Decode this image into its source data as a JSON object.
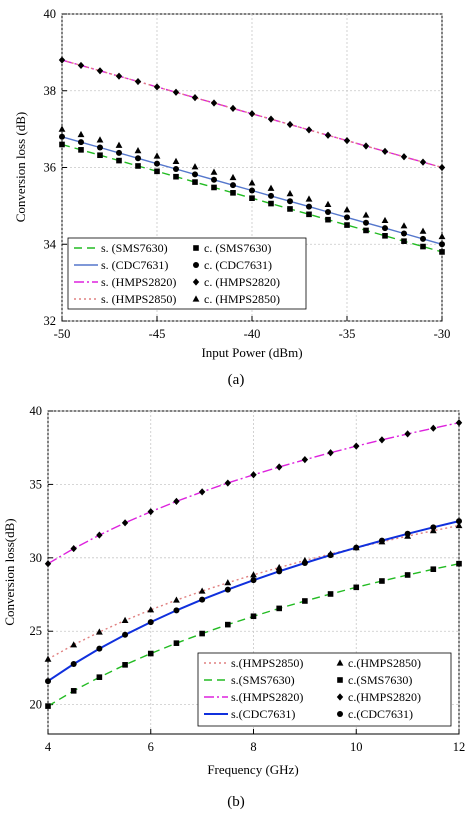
{
  "chart_data": [
    {
      "type": "line",
      "panel_label": "(a)",
      "xlabel": "Input Power (dBm)",
      "ylabel": "Conversion loss (dB)",
      "xlim": [
        -50,
        -30
      ],
      "ylim": [
        32,
        40
      ],
      "xticks": [
        -50,
        -45,
        -40,
        -35,
        -30
      ],
      "yticks": [
        32,
        34,
        36,
        38,
        40
      ],
      "grid": true,
      "legend_position": "bottom-left",
      "x": [
        -50,
        -49,
        -48,
        -47,
        -46,
        -45,
        -44,
        -43,
        -42,
        -41,
        -40,
        -39,
        -38,
        -37,
        -36,
        -35,
        -34,
        -33,
        -32,
        -31,
        -30
      ],
      "series": [
        {
          "name": "s. (SMS7630)",
          "kind": "simulated",
          "color": "#22bb22",
          "dash": "8,5",
          "y_start": 36.6,
          "y_end": 33.8
        },
        {
          "name": "s. (CDC7631)",
          "kind": "simulated",
          "color": "#5577cc",
          "dash": "",
          "y_start": 36.8,
          "y_end": 34.0
        },
        {
          "name": "s. (HMPS2820)",
          "kind": "simulated",
          "color": "#dd22dd",
          "dash": "10,3,2,3",
          "y_start": 38.8,
          "y_end": 36.0
        },
        {
          "name": "s. (HMPS2850)",
          "kind": "simulated",
          "color": "#e08080",
          "dash": "2,3",
          "y_start": 38.8,
          "y_end": 36.0
        },
        {
          "name": "c. (SMS7630)",
          "kind": "calculated",
          "marker": "square",
          "y_start": 36.6,
          "y_end": 33.8
        },
        {
          "name": "c. (CDC7631)",
          "kind": "calculated",
          "marker": "circle",
          "y_start": 36.8,
          "y_end": 34.0
        },
        {
          "name": "c. (HMPS2820)",
          "kind": "calculated",
          "marker": "diamond",
          "y_start": 38.8,
          "y_end": 36.0
        },
        {
          "name": "c. (HMPS2850)",
          "kind": "calculated",
          "marker": "triangle",
          "y_start": 37.0,
          "y_end": 34.2
        }
      ],
      "legend": [
        [
          "s. (SMS7630)",
          "c. (SMS7630)"
        ],
        [
          "s. (CDC7631)",
          "c. (CDC7631)"
        ],
        [
          "s. (HMPS2820)",
          "c. (HMPS2820)"
        ],
        [
          "s. (HMPS2850)",
          "c. (HMPS2850)"
        ]
      ]
    },
    {
      "type": "line",
      "panel_label": "(b)",
      "xlabel": "Frequency (GHz)",
      "ylabel": "Conversion loss(dB)",
      "xlim": [
        4,
        12
      ],
      "ylim": [
        18,
        40
      ],
      "xticks": [
        4,
        6,
        8,
        10,
        12
      ],
      "yticks": [
        20,
        25,
        30,
        35,
        40
      ],
      "grid": true,
      "legend_position": "bottom-right",
      "x": [
        4,
        4.5,
        5,
        5.5,
        6,
        6.5,
        7,
        7.5,
        8,
        8.5,
        9,
        9.5,
        10,
        10.5,
        11,
        11.5,
        12
      ],
      "series": [
        {
          "name": "s.(HMPS2850)",
          "kind": "simulated",
          "color": "#e08080",
          "dash": "2,3",
          "y_at_4": 23.1,
          "y_at_12": 32.2
        },
        {
          "name": "s.(SMS7630)",
          "kind": "simulated",
          "color": "#22bb22",
          "dash": "8,5",
          "y_at_4": 19.9,
          "y_at_12": 29.6
        },
        {
          "name": "s.(HMPS2820)",
          "kind": "simulated",
          "color": "#dd22dd",
          "dash": "10,3,2,3",
          "y_at_4": 29.6,
          "y_at_12": 39.2
        },
        {
          "name": "s.(CDC7631)",
          "kind": "simulated",
          "color": "#1030dd",
          "dash": "",
          "width": 2,
          "y_at_4": 21.6,
          "y_at_12": 32.5
        },
        {
          "name": "c.(HMPS2850)",
          "kind": "calculated",
          "marker": "triangle",
          "y_at_4": 23.1,
          "y_at_12": 32.2
        },
        {
          "name": "c.(SMS7630)",
          "kind": "calculated",
          "marker": "square",
          "y_at_4": 19.9,
          "y_at_12": 29.6
        },
        {
          "name": "c.(HMPS2820)",
          "kind": "calculated",
          "marker": "diamond",
          "y_at_4": 29.6,
          "y_at_12": 39.2
        },
        {
          "name": "c.(CDC7631)",
          "kind": "calculated",
          "marker": "circle",
          "y_at_4": 21.6,
          "y_at_12": 32.5
        }
      ],
      "legend": [
        [
          "s.(HMPS2850)",
          "c.(HMPS2850)"
        ],
        [
          "s.(SMS7630)",
          "c.(SMS7630)"
        ],
        [
          "s.(HMPS2820)",
          "c.(HMPS2820)"
        ],
        [
          "s.(CDC7631)",
          "c.(CDC7631)"
        ]
      ]
    }
  ]
}
